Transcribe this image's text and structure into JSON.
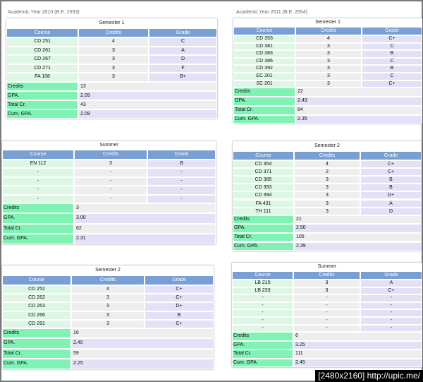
{
  "captions": {
    "left": "Academic Year 2010 (B.E. 2553)",
    "right": "Academic Year 2011 (B.E. 2554)"
  },
  "headers": {
    "course": "Course",
    "credits": "Credits",
    "grade": "Grade"
  },
  "summary_labels": {
    "credits": "Credits",
    "gpa": "GPA.",
    "total": "Total Cr.",
    "cum": "Cum. GPA."
  },
  "colors": {
    "header_bg": "#7a9fd2",
    "course_bg": "#ddf7e4",
    "credits_bg": "#eeeeee",
    "grade_bg": "#e3e1f6",
    "label_bg": "#7ff2b4"
  },
  "semesters": [
    {
      "title": "Semester 1",
      "rows": [
        [
          "CD 251",
          "4",
          "C"
        ],
        [
          "CD 261",
          "3",
          "A"
        ],
        [
          "CD 267",
          "3",
          "D"
        ],
        [
          "CD 271",
          "3",
          "F"
        ],
        [
          "FA 108",
          "3",
          "B+"
        ]
      ],
      "summary": {
        "credits": "13",
        "gpa": "2.09",
        "total": "43",
        "cum": "2.09"
      }
    },
    {
      "title": "Semester 1",
      "rows": [
        [
          "CD 353",
          "4",
          "C+"
        ],
        [
          "CD 381",
          "3",
          "C"
        ],
        [
          "CD 383",
          "3",
          "B"
        ],
        [
          "CD 386",
          "3",
          "C"
        ],
        [
          "CD 392",
          "3",
          "B"
        ],
        [
          "EC 201",
          "3",
          "C"
        ],
        [
          "SC 201",
          "3",
          "C+"
        ]
      ],
      "summary": {
        "credits": "22",
        "gpa": "2.43",
        "total": "84",
        "cum": "2.35"
      }
    },
    {
      "title": "Summer",
      "rows": [
        [
          "EN 112",
          "3",
          "B"
        ],
        [
          "-",
          "-",
          "-"
        ],
        [
          "-",
          "-",
          "-"
        ],
        [
          "-",
          "-",
          "-"
        ],
        [
          "-",
          "-",
          "-"
        ]
      ],
      "summary": {
        "credits": "3",
        "gpa": "3.00",
        "total": "62",
        "cum": "2.31"
      }
    },
    {
      "title": "Semester 2",
      "rows": [
        [
          "CD 354",
          "4",
          "C+"
        ],
        [
          "CD 371",
          "2",
          "C+"
        ],
        [
          "CD 385",
          "3",
          "B"
        ],
        [
          "CD 393",
          "3",
          "B"
        ],
        [
          "CD 394",
          "3",
          "D+"
        ],
        [
          "FA 431",
          "3",
          "A"
        ],
        [
          "TH 111",
          "3",
          "D"
        ]
      ],
      "summary": {
        "credits": "21",
        "gpa": "2.50",
        "total": "105",
        "cum": "2.39"
      }
    },
    {
      "title": "Semester 2",
      "rows": [
        [
          "CD 252",
          "4",
          "C+"
        ],
        [
          "CD 262",
          "3",
          "C+"
        ],
        [
          "CD 263",
          "3",
          "D+"
        ],
        [
          "CD 266",
          "3",
          "B"
        ],
        [
          "CD 291",
          "3",
          "C+"
        ]
      ],
      "summary": {
        "credits": "16",
        "gpa": "2.40",
        "total": "59",
        "cum": "2.25"
      }
    },
    {
      "title": "Summer",
      "rows": [
        [
          "LB 215",
          "3",
          "A"
        ],
        [
          "LB 233",
          "3",
          "C+"
        ],
        [
          "-",
          "-",
          "-"
        ],
        [
          "-",
          "-",
          "-"
        ],
        [
          "-",
          "-",
          "-"
        ],
        [
          "-",
          "-",
          "-"
        ],
        [
          "-",
          "-",
          "-"
        ]
      ],
      "summary": {
        "credits": "6",
        "gpa": "3.25",
        "total": "111",
        "cum": "2.45"
      }
    }
  ],
  "watermark": "[2480x2160] http://upic.me/"
}
